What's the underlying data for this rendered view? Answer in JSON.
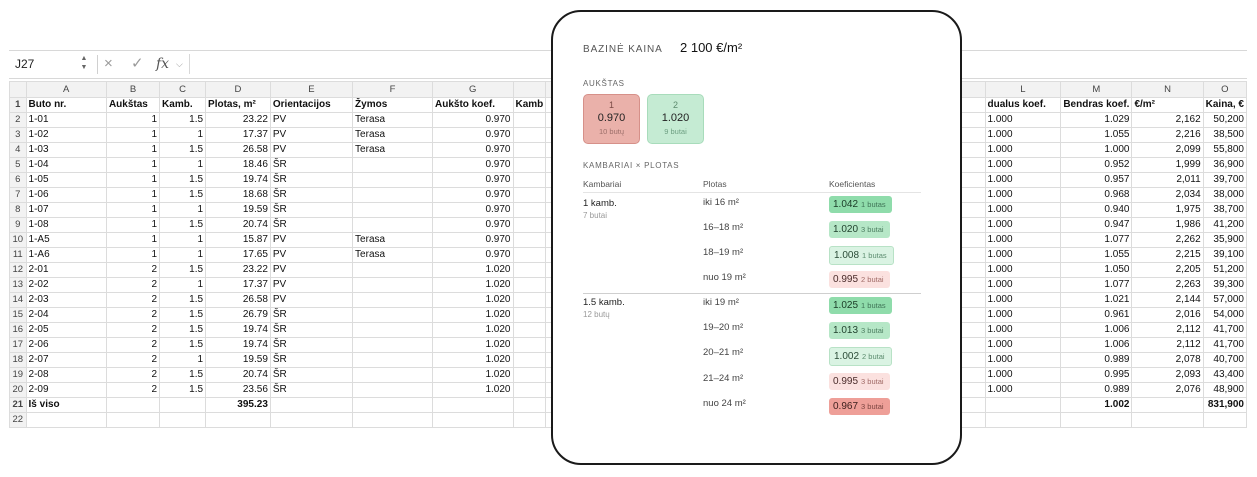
{
  "formula_bar": {
    "cell_ref": "J27",
    "cancel_icon": "×",
    "confirm_icon": "✓",
    "fx_label": "fx",
    "formula_value": ""
  },
  "sheet": {
    "col_headers_left": [
      "A",
      "B",
      "C",
      "D",
      "E",
      "F",
      "G",
      ""
    ],
    "col_headers_right": [
      "L",
      "M",
      "N",
      "O"
    ],
    "header_row": {
      "num": "1",
      "left": [
        "Buto nr.",
        "Aukštas",
        "Kamb.",
        "Plotas, m²",
        "Orientacijos",
        "Žymos",
        "Aukšto koef.",
        "Kamb"
      ],
      "right": [
        "dualus koef.",
        "Bendras koef.",
        "€/m²",
        "Kaina, €"
      ]
    },
    "rows": [
      {
        "num": "2",
        "left": [
          "1-01",
          "1",
          "1.5",
          "23.22",
          "PV",
          "Terasa",
          "0.970",
          ""
        ],
        "right": [
          "1.000",
          "1.029",
          "2,162",
          "50,200"
        ]
      },
      {
        "num": "3",
        "left": [
          "1-02",
          "1",
          "1",
          "17.37",
          "PV",
          "Terasa",
          "0.970",
          ""
        ],
        "right": [
          "1.000",
          "1.055",
          "2,216",
          "38,500"
        ]
      },
      {
        "num": "4",
        "left": [
          "1-03",
          "1",
          "1.5",
          "26.58",
          "PV",
          "Terasa",
          "0.970",
          ""
        ],
        "right": [
          "1.000",
          "1.000",
          "2,099",
          "55,800"
        ]
      },
      {
        "num": "5",
        "left": [
          "1-04",
          "1",
          "1",
          "18.46",
          "ŠR",
          "",
          "0.970",
          ""
        ],
        "right": [
          "1.000",
          "0.952",
          "1,999",
          "36,900"
        ]
      },
      {
        "num": "6",
        "left": [
          "1-05",
          "1",
          "1.5",
          "19.74",
          "ŠR",
          "",
          "0.970",
          ""
        ],
        "right": [
          "1.000",
          "0.957",
          "2,011",
          "39,700"
        ]
      },
      {
        "num": "7",
        "left": [
          "1-06",
          "1",
          "1.5",
          "18.68",
          "ŠR",
          "",
          "0.970",
          ""
        ],
        "right": [
          "1.000",
          "0.968",
          "2,034",
          "38,000"
        ]
      },
      {
        "num": "8",
        "left": [
          "1-07",
          "1",
          "1",
          "19.59",
          "ŠR",
          "",
          "0.970",
          ""
        ],
        "right": [
          "1.000",
          "0.940",
          "1,975",
          "38,700"
        ]
      },
      {
        "num": "9",
        "left": [
          "1-08",
          "1",
          "1.5",
          "20.74",
          "ŠR",
          "",
          "0.970",
          ""
        ],
        "right": [
          "1.000",
          "0.947",
          "1,986",
          "41,200"
        ]
      },
      {
        "num": "10",
        "left": [
          "1-A5",
          "1",
          "1",
          "15.87",
          "PV",
          "Terasa",
          "0.970",
          ""
        ],
        "right": [
          "1.000",
          "1.077",
          "2,262",
          "35,900"
        ]
      },
      {
        "num": "11",
        "left": [
          "1-A6",
          "1",
          "1",
          "17.65",
          "PV",
          "Terasa",
          "0.970",
          ""
        ],
        "right": [
          "1.000",
          "1.055",
          "2,215",
          "39,100"
        ]
      },
      {
        "num": "12",
        "left": [
          "2-01",
          "2",
          "1.5",
          "23.22",
          "PV",
          "",
          "1.020",
          ""
        ],
        "right": [
          "1.000",
          "1.050",
          "2,205",
          "51,200"
        ]
      },
      {
        "num": "13",
        "left": [
          "2-02",
          "2",
          "1",
          "17.37",
          "PV",
          "",
          "1.020",
          ""
        ],
        "right": [
          "1.000",
          "1.077",
          "2,263",
          "39,300"
        ]
      },
      {
        "num": "14",
        "left": [
          "2-03",
          "2",
          "1.5",
          "26.58",
          "PV",
          "",
          "1.020",
          ""
        ],
        "right": [
          "1.000",
          "1.021",
          "2,144",
          "57,000"
        ]
      },
      {
        "num": "15",
        "left": [
          "2-04",
          "2",
          "1.5",
          "26.79",
          "ŠR",
          "",
          "1.020",
          ""
        ],
        "right": [
          "1.000",
          "0.961",
          "2,016",
          "54,000"
        ]
      },
      {
        "num": "16",
        "left": [
          "2-05",
          "2",
          "1.5",
          "19.74",
          "ŠR",
          "",
          "1.020",
          ""
        ],
        "right": [
          "1.000",
          "1.006",
          "2,112",
          "41,700"
        ]
      },
      {
        "num": "17",
        "left": [
          "2-06",
          "2",
          "1.5",
          "19.74",
          "ŠR",
          "",
          "1.020",
          ""
        ],
        "right": [
          "1.000",
          "1.006",
          "2,112",
          "41,700"
        ]
      },
      {
        "num": "18",
        "left": [
          "2-07",
          "2",
          "1",
          "19.59",
          "ŠR",
          "",
          "1.020",
          ""
        ],
        "right": [
          "1.000",
          "0.989",
          "2,078",
          "40,700"
        ]
      },
      {
        "num": "19",
        "left": [
          "2-08",
          "2",
          "1.5",
          "20.74",
          "ŠR",
          "",
          "1.020",
          ""
        ],
        "right": [
          "1.000",
          "0.995",
          "2,093",
          "43,400"
        ]
      },
      {
        "num": "20",
        "left": [
          "2-09",
          "2",
          "1.5",
          "23.56",
          "ŠR",
          "",
          "1.020",
          ""
        ],
        "right": [
          "1.000",
          "0.989",
          "2,076",
          "48,900"
        ]
      },
      {
        "num": "21",
        "left": [
          "Iš viso",
          "",
          "",
          "395.23",
          "",
          "",
          "",
          ""
        ],
        "right": [
          "",
          "1.002",
          "",
          "831,900"
        ],
        "total": true
      },
      {
        "num": "22",
        "left": [
          "",
          "",
          "",
          "",
          "",
          "",
          "",
          ""
        ],
        "right": [
          "",
          "",
          "",
          ""
        ]
      }
    ]
  },
  "card": {
    "base_price_label": "BAZINĖ KAINA",
    "base_price_value": "2 100 €/m²",
    "floors_title": "AUKŠTAS",
    "floors": [
      {
        "num": "1",
        "coef": "0.970",
        "units": "10 butų"
      },
      {
        "num": "2",
        "coef": "1.020",
        "units": "9 butai"
      }
    ],
    "rooms_title": "KAMBARIAI × PLOTAS",
    "table_headers": [
      "Kambariai",
      "Plotas",
      "Koeficientas"
    ],
    "groups": [
      {
        "name": "1 kamb.",
        "sub": "7 butai",
        "rows": [
          {
            "range": "iki 16 m²",
            "coef": "1.042",
            "count": "1 butas"
          },
          {
            "range": "16–18 m²",
            "coef": "1.020",
            "count": "3 butai"
          },
          {
            "range": "18–19 m²",
            "coef": "1.008",
            "count": "1 butas"
          },
          {
            "range": "nuo 19 m²",
            "coef": "0.995",
            "count": "2 butai"
          }
        ]
      },
      {
        "name": "1.5 kamb.",
        "sub": "12 butų",
        "rows": [
          {
            "range": "iki 19 m²",
            "coef": "1.025",
            "count": "1 butas"
          },
          {
            "range": "19–20 m²",
            "coef": "1.013",
            "count": "3 butai"
          },
          {
            "range": "20–21 m²",
            "coef": "1.002",
            "count": "2 butai"
          },
          {
            "range": "21–24 m²",
            "coef": "0.995",
            "count": "3 butai"
          },
          {
            "range": "nuo 24 m²",
            "coef": "0.967",
            "count": "3 butai"
          }
        ]
      }
    ]
  }
}
